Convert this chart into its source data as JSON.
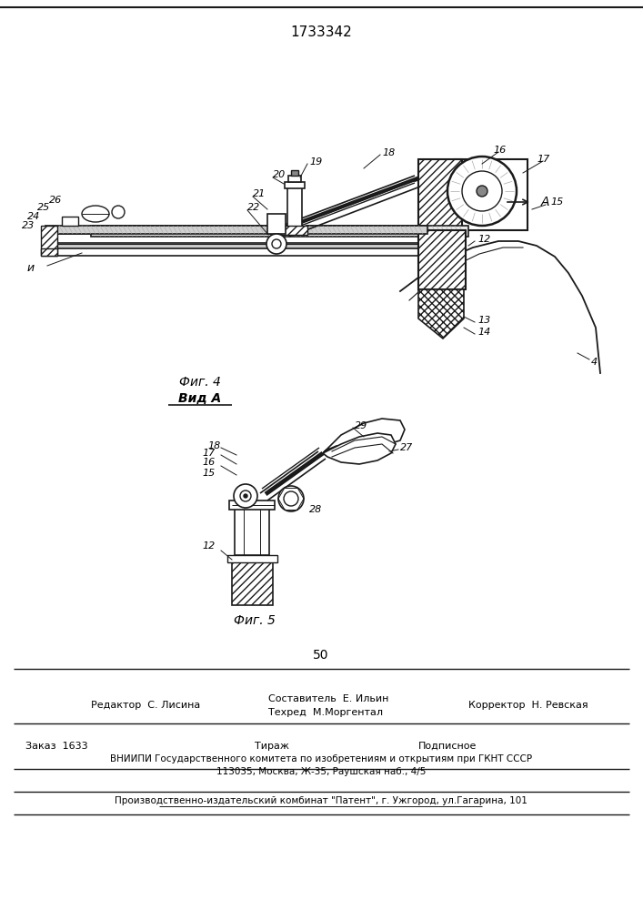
{
  "patent_number": "1733342",
  "fig4_caption": "Фиг. 4",
  "fig4_subcaption": "Вид А",
  "fig5_caption": "Фиг. 5",
  "page_number": "50",
  "editor_line": "Редактор  С. Лисина",
  "compositor_line1": "Составитель  Е. Ильин",
  "compositor_line2": "Техред  М.Моргентал",
  "corrector_line": "Корректор  Н. Ревская",
  "order_line": "Заказ  1633",
  "circulation_line": "Тираж",
  "subscription_line": "Подписное",
  "vniiipi_line": "ВНИИПИ Государственного комитета по изобретениям и открытиям при ГКНТ СССР",
  "address_line": "113035, Москва, Ж-35, Раушская наб., 4/5",
  "production_line": "Производственно-издательский комбинат \"Патент\", г. Ужгород, ул.Гагарина, 101",
  "bg_color": "#ffffff",
  "line_color": "#1a1a1a"
}
